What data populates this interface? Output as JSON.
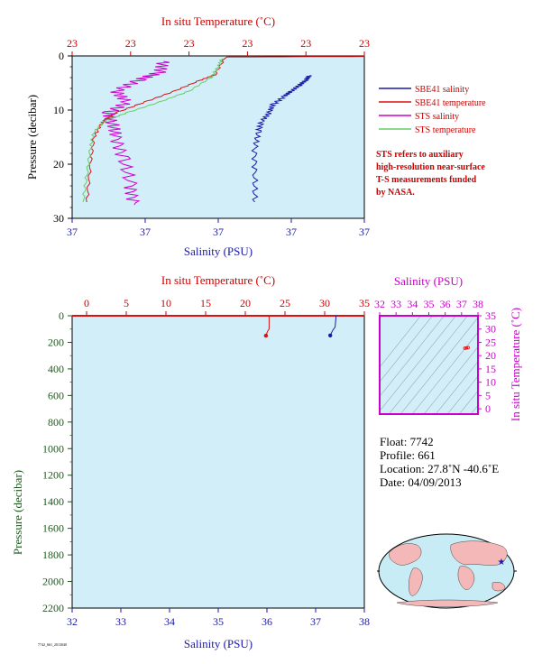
{
  "top_chart": {
    "title_top": "In situ Temperature (˚C)",
    "xlabel": "Salinity (PSU)",
    "ylabel": "Pressure (decibar)",
    "temp_tick_labels": [
      "23",
      "23",
      "23",
      "23",
      "23",
      "23"
    ],
    "sal_tick_labels": [
      "37",
      "37",
      "37",
      "37",
      "37"
    ],
    "pressure_tick_labels": [
      "0",
      "10",
      "20",
      "30"
    ],
    "legend": [
      {
        "label": "SBE41 salinity",
        "color": "#1a1aa6"
      },
      {
        "label": "SBE41 temperature",
        "color": "#dd1111"
      },
      {
        "label": "STS salinity",
        "color": "#cc00cc"
      },
      {
        "label": "STS temperature",
        "color": "#66cc66"
      }
    ],
    "note": [
      "STS refers to auxiliary",
      "high-resolution near-surface",
      "T-S measurements funded",
      "by NASA."
    ]
  },
  "bottom_chart": {
    "title_top": "In situ Temperature (˚C)",
    "xlabel": "Salinity (PSU)",
    "ylabel": "Pressure (decibar)",
    "temp_tick_labels": [
      "0",
      "5",
      "10",
      "15",
      "20",
      "25",
      "30",
      "35"
    ],
    "sal_tick_labels": [
      "32",
      "33",
      "34",
      "35",
      "36",
      "37",
      "38"
    ],
    "pressure_tick_labels": [
      "0",
      "200",
      "400",
      "600",
      "800",
      "1000",
      "1200",
      "1400",
      "1600",
      "1800",
      "2000",
      "2200"
    ]
  },
  "ts_diagram": {
    "title": "Salinity (PSU)",
    "ylabel": "In situ Temperature (˚C)",
    "sal_tick_labels": [
      "32",
      "33",
      "34",
      "35",
      "36",
      "37",
      "38"
    ],
    "temp_tick_labels": [
      "0",
      "5",
      "10",
      "15",
      "20",
      "25",
      "30",
      "35"
    ]
  },
  "float_info": {
    "float": "Float:  7742",
    "profile": "Profile:  661",
    "location": "Location:  27.8˚N  -40.6˚E",
    "date": "Date:  04/09/2013"
  },
  "footer_code": "7742_661_2013040",
  "chart_data": [
    {
      "type": "line",
      "title": "In situ Temperature (˚C)",
      "xlabel": "Salinity (PSU)",
      "ylabel": "Pressure (decibar)",
      "ylim": [
        30,
        0
      ],
      "temp_xlim": [
        22.6,
        23.4
      ],
      "sal_xlim": [
        36.6,
        37.4
      ],
      "series": [
        {
          "name": "SBE41 salinity",
          "axis": "salinity",
          "x": [
            37.25,
            37.24,
            37.22,
            37.2,
            37.18,
            37.15,
            37.14,
            37.12,
            37.11,
            37.1,
            37.1,
            37.1
          ],
          "y": [
            3.6,
            4.5,
            5.5,
            6.5,
            7.5,
            9,
            10.5,
            12,
            14,
            17,
            22,
            27
          ]
        },
        {
          "name": "SBE41 temperature",
          "axis": "temperature",
          "x": [
            23.4,
            23.02,
            22.99,
            22.95,
            22.88,
            22.8,
            22.72,
            22.7,
            22.68,
            22.66,
            22.65,
            22.64
          ],
          "y": [
            0.1,
            0.2,
            3.5,
            4.5,
            6.5,
            8.5,
            10.5,
            11.3,
            12.5,
            15,
            20,
            27
          ]
        },
        {
          "name": "STS salinity",
          "axis": "salinity",
          "x": [
            36.85,
            36.84,
            36.78,
            36.72,
            36.75,
            36.7,
            36.71,
            36.72,
            36.74,
            36.76,
            36.77
          ],
          "y": [
            1,
            3,
            4.5,
            6.5,
            8.5,
            10.5,
            12.5,
            15,
            19,
            24,
            27.5
          ]
        },
        {
          "name": "STS temperature",
          "axis": "temperature",
          "x": [
            23.01,
            23.0,
            22.98,
            22.92,
            22.84,
            22.75,
            22.69,
            22.66,
            22.65,
            22.64,
            22.63
          ],
          "y": [
            0.5,
            2,
            4,
            6.5,
            8.5,
            10.5,
            12,
            14,
            17,
            22,
            27
          ]
        }
      ]
    },
    {
      "type": "line",
      "title": "In situ Temperature (˚C)",
      "xlabel": "Salinity (PSU)",
      "ylabel": "Pressure (decibar)",
      "ylim": [
        2200,
        0
      ],
      "temp_xlim": [
        0,
        35
      ],
      "sal_xlim": [
        32,
        38
      ],
      "series": [
        {
          "name": "temperature",
          "axis": "temperature",
          "color": "#dd1111",
          "x": [
            23.0,
            23.0,
            22.8,
            22.6
          ],
          "y": [
            0,
            100,
            118,
            150
          ]
        },
        {
          "name": "salinity",
          "axis": "salinity",
          "color": "#1a1aa6",
          "x": [
            37.42,
            37.4,
            37.35,
            37.3
          ],
          "y": [
            0,
            85,
            110,
            148
          ]
        }
      ]
    },
    {
      "type": "scatter",
      "title": "Salinity (PSU)",
      "xlabel": "Salinity (PSU)",
      "ylabel": "In situ Temperature (˚C)",
      "xlim": [
        32,
        38
      ],
      "ylim": [
        -2,
        35
      ],
      "x": [
        37.2,
        37.3,
        37.4
      ],
      "y": [
        22.8,
        22.9,
        23.0
      ]
    }
  ]
}
